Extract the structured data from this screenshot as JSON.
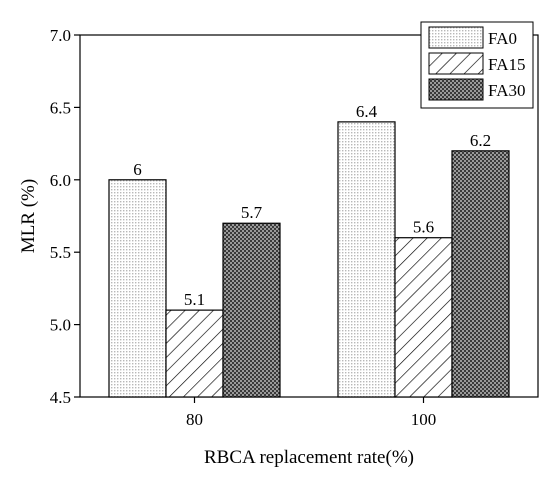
{
  "chart_data": {
    "type": "bar",
    "categories": [
      "80",
      "100"
    ],
    "series": [
      {
        "name": "FA0",
        "values": [
          6.0,
          6.4
        ],
        "labels": [
          "6",
          "6.4"
        ],
        "pattern": "dots"
      },
      {
        "name": "FA15",
        "values": [
          5.1,
          5.6
        ],
        "labels": [
          "5.1",
          "5.6"
        ],
        "pattern": "hatch"
      },
      {
        "name": "FA30",
        "values": [
          5.7,
          6.2
        ],
        "labels": [
          "5.7",
          "6.2"
        ],
        "pattern": "checker"
      }
    ],
    "title": "",
    "xlabel": "RBCA replacement rate(%)",
    "ylabel": "MLR (%)",
    "ylim": [
      4.5,
      7.0
    ],
    "yticks": [
      "4.5",
      "5.0",
      "5.5",
      "6.0",
      "6.5",
      "7.0"
    ],
    "grid": false,
    "legend_position": "top-right"
  }
}
